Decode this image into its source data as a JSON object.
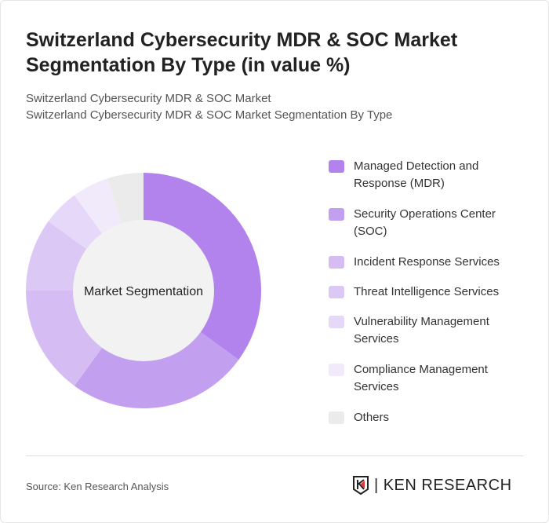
{
  "title": "Switzerland Cybersecurity MDR & SOC Market Segmentation By Type (in value %)",
  "subtitle_lines": [
    "Switzerland Cybersecurity MDR & SOC Market",
    "Switzerland Cybersecurity MDR & SOC Market Segmentation By Type"
  ],
  "source": "Source: Ken Research Analysis",
  "logo_text": "KEN RESEARCH",
  "chart_data": {
    "type": "pie",
    "donut": true,
    "center_label": "Market Segmentation",
    "legend_position": "right",
    "categories": [
      "Managed Detection and Response (MDR)",
      "Security Operations Center (SOC)",
      "Incident Response Services",
      "Threat Intelligence Services",
      "Vulnerability Management Services",
      "Compliance Management Services",
      "Others"
    ],
    "values": [
      35,
      25,
      15,
      10,
      5,
      5,
      5
    ],
    "colors": [
      "#b283ec",
      "#c39ff0",
      "#d5bdf4",
      "#dcc8f5",
      "#e6d8f8",
      "#f0eafb",
      "#ebebeb"
    ]
  }
}
